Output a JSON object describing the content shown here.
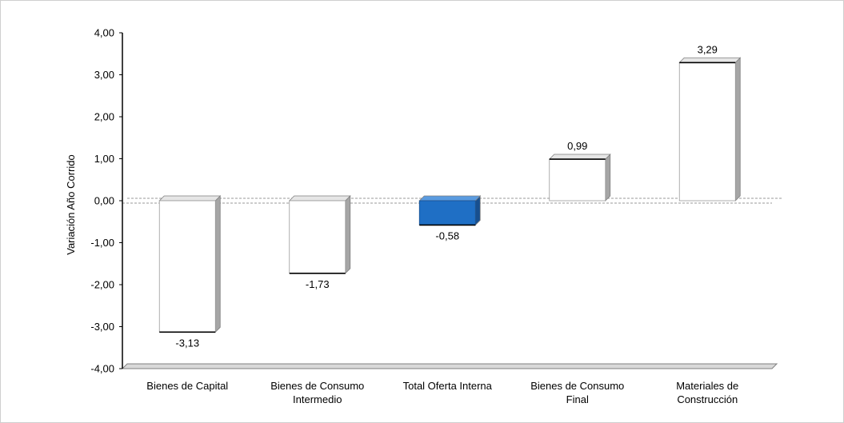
{
  "chart_data": {
    "type": "bar",
    "title": "",
    "xlabel": "",
    "ylabel": "Variación Año Corrido",
    "ylim": [
      -4,
      4
    ],
    "ytick_step": 1,
    "yticks": [
      "-4,00",
      "-3,00",
      "-2,00",
      "-1,00",
      "0,00",
      "1,00",
      "2,00",
      "3,00",
      "4,00"
    ],
    "categories": [
      [
        "Bienes de Capital"
      ],
      [
        "Bienes de Consumo",
        "Intermedio"
      ],
      [
        "Total Oferta Interna"
      ],
      [
        "Bienes de Consumo",
        "Final"
      ],
      [
        "Materiales de",
        "Construcción"
      ]
    ],
    "values": [
      -3.13,
      -1.73,
      -0.58,
      0.99,
      3.29
    ],
    "value_labels": [
      "-3,13",
      "-1,73",
      "-0,58",
      "0,99",
      "3,29"
    ],
    "highlight_index": 2,
    "colors": {
      "bar_fill": "#ffffff",
      "bar_edge": "#000000",
      "bar_side": "#a6a6a6",
      "highlight_fill": "#1f6fc5",
      "highlight_side": "#174f8f",
      "axis": "#000000",
      "floor": "#808080",
      "zero_line": "#9a9a9a"
    },
    "grid": false,
    "legend": "none"
  }
}
